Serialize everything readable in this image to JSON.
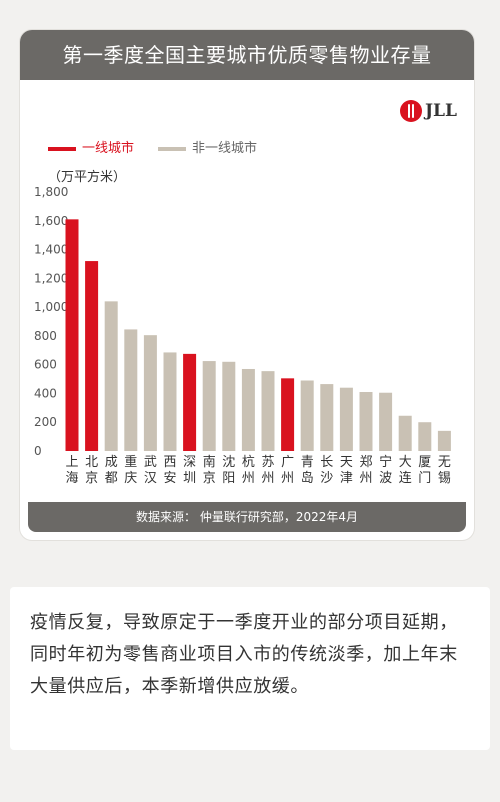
{
  "card": {
    "title": "第一季度全国主要城市优质零售物业存量",
    "logo_text": "JLL",
    "legend": [
      {
        "label": "一线城市",
        "color": "#d9121f"
      },
      {
        "label": "非一线城市",
        "color": "#c9c1b4"
      }
    ],
    "unit": "（万平方米）",
    "source": "数据来源： 仲量联行研究部，2022年4月"
  },
  "chart_data": {
    "type": "bar",
    "ylim": [
      0,
      1800
    ],
    "yticks": [
      "0",
      "200",
      "400",
      "600",
      "800",
      "1,000",
      "1,200",
      "1,400",
      "1,600",
      "1,800"
    ],
    "ytick_values": [
      0,
      200,
      400,
      600,
      800,
      1000,
      1200,
      1400,
      1600,
      1800
    ],
    "grid": false,
    "legend_position": "top-left",
    "categories": [
      "上海",
      "北京",
      "成都",
      "重庆",
      "武汉",
      "西安",
      "深圳",
      "南京",
      "沈阳",
      "杭州",
      "苏州",
      "广州",
      "青岛",
      "长沙",
      "天津",
      "郑州",
      "宁波",
      "大连",
      "厦门",
      "无锡"
    ],
    "values": [
      1610,
      1320,
      1040,
      845,
      805,
      685,
      675,
      625,
      620,
      570,
      555,
      505,
      490,
      465,
      440,
      410,
      405,
      245,
      200,
      140
    ],
    "tier1": [
      true,
      true,
      false,
      false,
      false,
      false,
      true,
      false,
      false,
      false,
      false,
      true,
      false,
      false,
      false,
      false,
      false,
      false,
      false,
      false
    ],
    "colors": {
      "tier1": "#d9121f",
      "other": "#c9c1b4"
    }
  },
  "text": "疫情反复，导致原定于一季度开业的部分项目延期，同时年初为零售商业项目入市的传统淡季，加上年末大量供应后，本季新增供应放缓。"
}
